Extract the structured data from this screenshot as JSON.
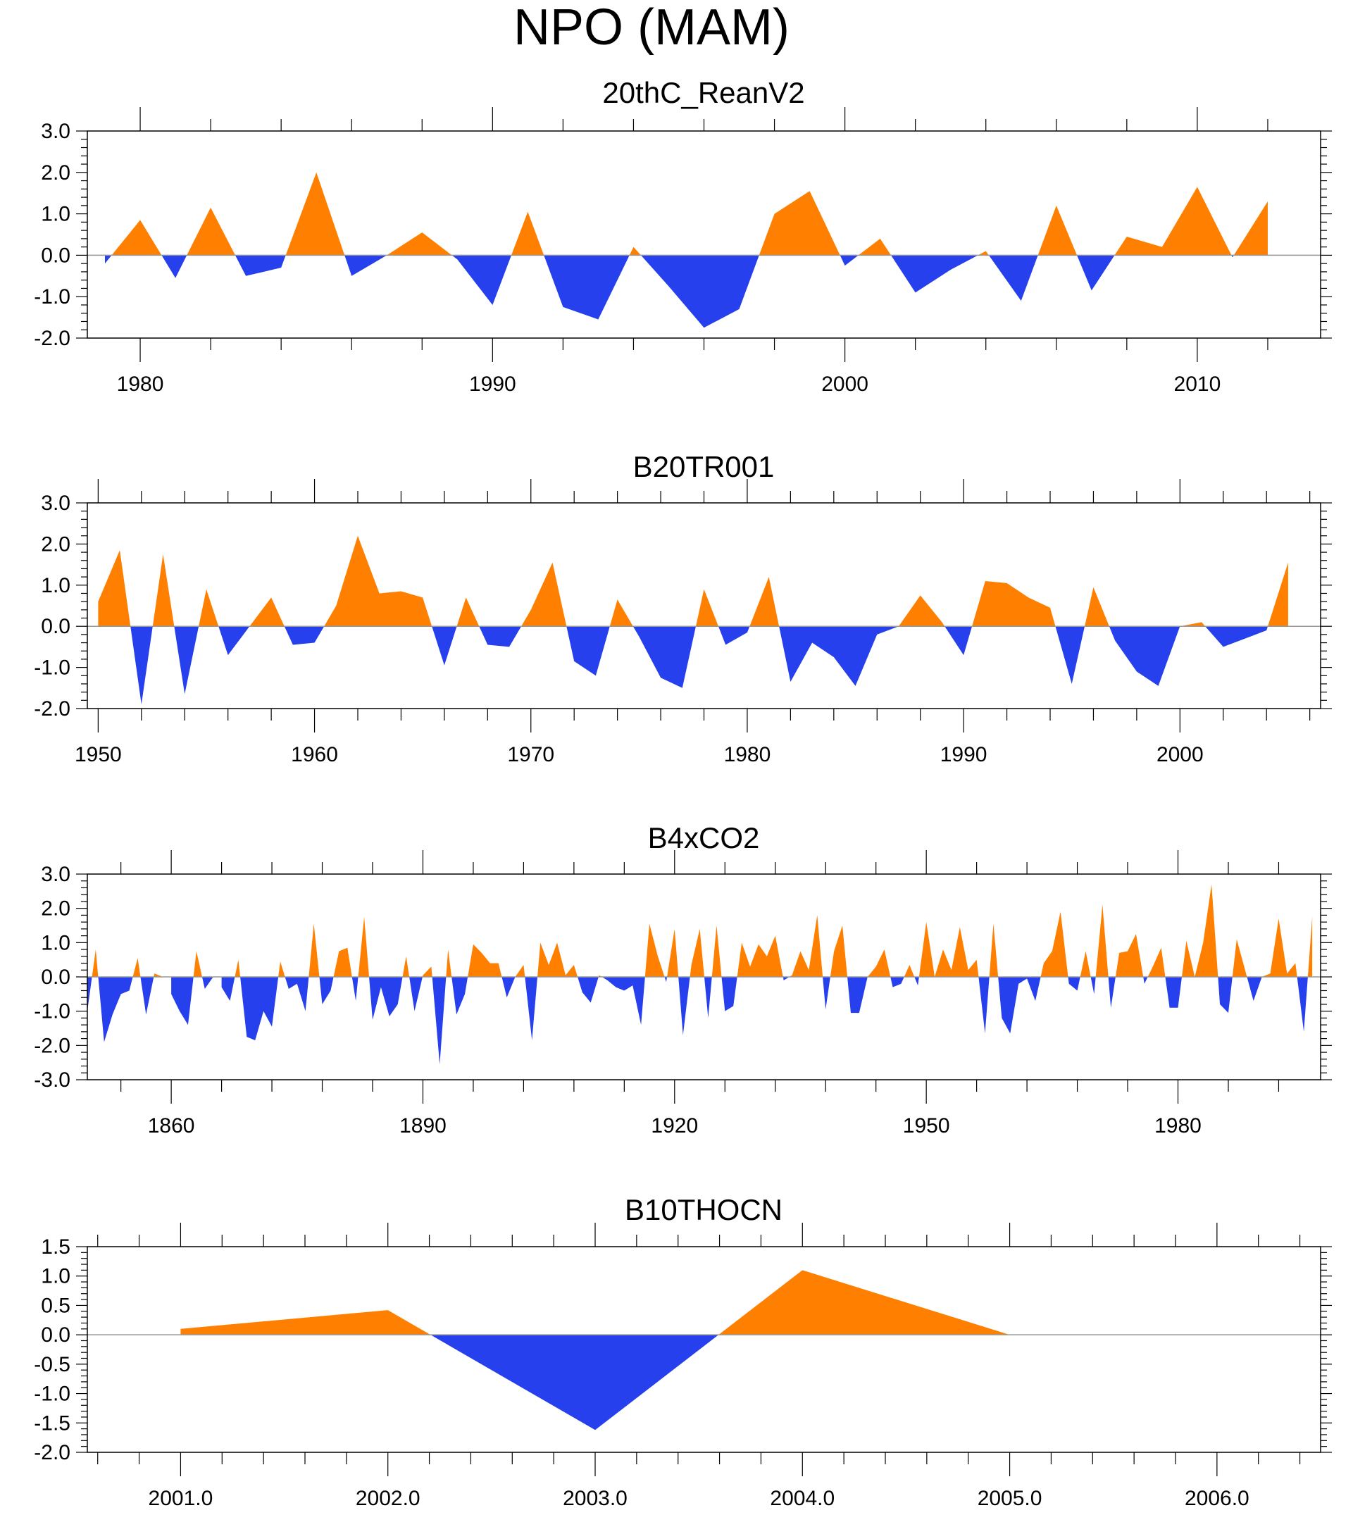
{
  "title": "NPO (MAM)",
  "colors": {
    "positive": "#ff8000",
    "negative": "#2740ee",
    "axis": "#000000",
    "zero_line": "#999999"
  },
  "chart_data": [
    {
      "type": "area",
      "title": "20thC_ReanV2",
      "xlim": [
        1978.5,
        2013.5
      ],
      "ylim": [
        -2.0,
        3.0
      ],
      "xticks": [
        1980,
        1990,
        2000,
        2010
      ],
      "xtick_labels": [
        "1980",
        "1990",
        "2000",
        "2010"
      ],
      "xminor_step": 2,
      "yticks": [
        -2.0,
        -1.0,
        0.0,
        1.0,
        2.0,
        3.0
      ],
      "ytick_labels": [
        "-2.0",
        "-1.0",
        "0.0",
        "1.0",
        "2.0",
        "3.0"
      ],
      "yminor_step": 0.2,
      "x": [
        1979,
        1980,
        1981,
        1982,
        1983,
        1984,
        1985,
        1986,
        1987,
        1988,
        1989,
        1990,
        1991,
        1992,
        1993,
        1994,
        1995,
        1996,
        1997,
        1998,
        1999,
        2000,
        2001,
        2002,
        2003,
        2004,
        2005,
        2006,
        2007,
        2008,
        2009,
        2010,
        2011,
        2012
      ],
      "values": [
        -0.2,
        0.85,
        -0.55,
        1.15,
        -0.5,
        -0.3,
        2.0,
        -0.5,
        0.0,
        0.55,
        -0.1,
        -1.2,
        1.05,
        -1.25,
        -1.55,
        0.2,
        -0.75,
        -1.75,
        -1.3,
        1.0,
        1.55,
        -0.25,
        0.4,
        -0.9,
        -0.35,
        0.1,
        -1.1,
        1.2,
        -0.85,
        0.45,
        0.2,
        1.65,
        -0.05,
        1.3
      ]
    },
    {
      "type": "area",
      "title": "B20TR001",
      "xlim": [
        1949.5,
        2006.5
      ],
      "ylim": [
        -2.0,
        3.0
      ],
      "xticks": [
        1950,
        1960,
        1970,
        1980,
        1990,
        2000
      ],
      "xtick_labels": [
        "1950",
        "1960",
        "1970",
        "1980",
        "1990",
        "2000"
      ],
      "xminor_step": 2,
      "yticks": [
        -2.0,
        -1.0,
        0.0,
        1.0,
        2.0,
        3.0
      ],
      "ytick_labels": [
        "-2.0",
        "-1.0",
        "0.0",
        "1.0",
        "2.0",
        "3.0"
      ],
      "yminor_step": 0.2,
      "x": [
        1950,
        1951,
        1952,
        1953,
        1954,
        1955,
        1956,
        1957,
        1958,
        1959,
        1960,
        1961,
        1962,
        1963,
        1964,
        1965,
        1966,
        1967,
        1968,
        1969,
        1970,
        1971,
        1972,
        1973,
        1974,
        1975,
        1976,
        1977,
        1978,
        1979,
        1980,
        1981,
        1982,
        1983,
        1984,
        1985,
        1986,
        1987,
        1988,
        1989,
        1990,
        1991,
        1992,
        1993,
        1994,
        1995,
        1996,
        1997,
        1998,
        1999,
        2000,
        2001,
        2002,
        2003,
        2004,
        2005
      ],
      "values": [
        0.6,
        1.85,
        -1.9,
        1.75,
        -1.65,
        0.9,
        -0.7,
        0.0,
        0.7,
        -0.45,
        -0.4,
        0.5,
        2.2,
        0.8,
        0.85,
        0.7,
        -0.95,
        0.7,
        -0.45,
        -0.5,
        0.4,
        1.55,
        -0.85,
        -1.2,
        0.65,
        -0.25,
        -1.25,
        -1.5,
        0.9,
        -0.45,
        -0.15,
        1.2,
        -1.35,
        -0.4,
        -0.75,
        -1.45,
        -0.2,
        0.0,
        0.75,
        0.1,
        -0.7,
        1.1,
        1.05,
        0.7,
        0.45,
        -1.4,
        0.95,
        -0.35,
        -1.1,
        -1.45,
        0.0,
        0.1,
        -0.5,
        -0.3,
        -0.1,
        1.55
      ]
    },
    {
      "type": "area",
      "title": "B4xCO2",
      "xlim": [
        1850,
        1997
      ],
      "ylim": [
        -3.0,
        3.0
      ],
      "xticks": [
        1860,
        1890,
        1920,
        1950,
        1980
      ],
      "xtick_labels": [
        "1860",
        "1890",
        "1920",
        "1950",
        "1980"
      ],
      "xminor_step": 6,
      "yticks": [
        -3.0,
        -2.0,
        -1.0,
        0.0,
        1.0,
        2.0,
        3.0
      ],
      "ytick_labels": [
        "-3.0",
        "-2.0",
        "-1.0",
        "0.0",
        "1.0",
        "2.0",
        "3.0"
      ],
      "yminor_step": 0.2,
      "x_start": 1850,
      "x_step": 1,
      "values": [
        -1.0,
        0.8,
        -1.9,
        -1.1,
        -0.5,
        -0.4,
        0.55,
        -1.1,
        0.1,
        0.0,
        -0.5,
        -1.0,
        -1.4,
        0.75,
        -0.35,
        0.0,
        -0.3,
        -0.7,
        0.5,
        -1.75,
        -1.85,
        -1.0,
        -1.45,
        0.45,
        -0.35,
        -0.2,
        -1.0,
        1.55,
        -0.8,
        -0.4,
        0.75,
        0.85,
        -0.7,
        1.75,
        -1.25,
        -0.3,
        -1.15,
        -0.8,
        0.6,
        -1.0,
        0.05,
        0.3,
        -2.55,
        0.8,
        -1.1,
        -0.5,
        0.95,
        0.7,
        0.4,
        0.4,
        -0.6,
        0.0,
        0.35,
        -1.85,
        1.0,
        0.35,
        1.0,
        0.05,
        0.35,
        -0.45,
        -0.75,
        0.05,
        -0.1,
        -0.3,
        -0.4,
        -0.25,
        -1.4,
        1.55,
        0.6,
        -0.15,
        1.4,
        -1.7,
        0.35,
        1.4,
        -1.2,
        1.5,
        -1.0,
        -0.85,
        1.0,
        0.3,
        0.95,
        0.6,
        1.2,
        -0.1,
        0.05,
        0.75,
        0.2,
        1.8,
        -0.95,
        0.75,
        1.5,
        -1.05,
        -1.05,
        0.0,
        0.3,
        0.8,
        -0.3,
        -0.2,
        0.35,
        -0.25,
        1.6,
        0.0,
        0.8,
        0.2,
        1.45,
        0.2,
        0.5,
        -1.65,
        1.55,
        -1.2,
        -1.65,
        -0.2,
        -0.05,
        -0.7,
        0.4,
        0.75,
        1.9,
        -0.2,
        -0.4,
        0.75,
        -0.5,
        2.1,
        -0.9,
        0.7,
        0.75,
        1.25,
        -0.2,
        0.3,
        0.85,
        -0.9,
        -0.9,
        1.05,
        0.0,
        1.0,
        2.7,
        -0.8,
        -1.05,
        1.1,
        0.2,
        -0.7,
        0.0,
        0.1,
        1.7,
        0.1,
        0.4,
        -1.6,
        1.75
      ]
    },
    {
      "type": "area",
      "title": "B10THOCN",
      "xlim": [
        2000.55,
        2006.5
      ],
      "ylim": [
        -2.0,
        1.5
      ],
      "xticks": [
        2001,
        2002,
        2003,
        2004,
        2005,
        2006
      ],
      "xtick_labels": [
        "2001.0",
        "2002.0",
        "2003.0",
        "2004.0",
        "2005.0",
        "2006.0"
      ],
      "xminor_step": 0.2,
      "yticks": [
        -2.0,
        -1.5,
        -1.0,
        -0.5,
        0.0,
        0.5,
        1.0,
        1.5
      ],
      "ytick_labels": [
        "-2.0",
        "-1.5",
        "-1.0",
        "-0.5",
        "0.0",
        "0.5",
        "1.0",
        "1.5"
      ],
      "yminor_step": 0.1,
      "x": [
        2001.0,
        2002.0,
        2003.0,
        2004.0,
        2005.0
      ],
      "values": [
        0.1,
        0.42,
        -1.62,
        1.1,
        0.0
      ]
    }
  ]
}
